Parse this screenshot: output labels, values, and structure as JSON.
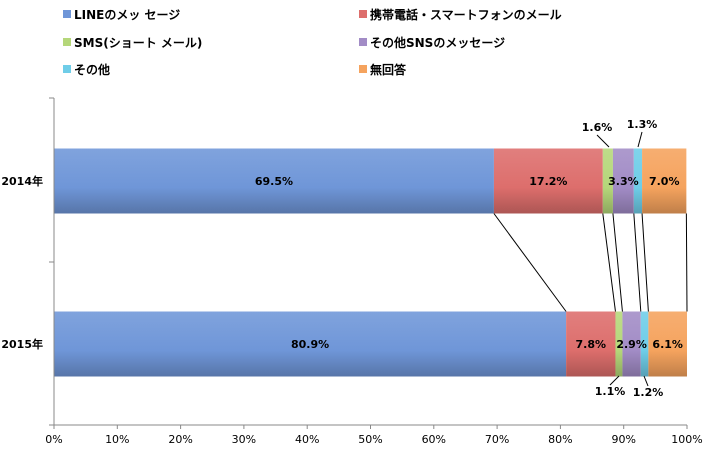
{
  "chart_data": {
    "type": "bar",
    "orientation": "horizontal",
    "stacked": true,
    "title": "",
    "xlabel": "",
    "ylabel": "",
    "xlim": [
      0,
      100
    ],
    "x_ticks": [
      "0%",
      "10%",
      "20%",
      "30%",
      "40%",
      "50%",
      "60%",
      "70%",
      "80%",
      "90%",
      "100%"
    ],
    "categories": [
      "2014年",
      "2015年"
    ],
    "legend_position": "top",
    "series": [
      {
        "name": "LINEのメッ セージ",
        "values": [
          69.5,
          80.9
        ],
        "labels": [
          "69.5%",
          "80.9%"
        ],
        "color": "#6f96d8"
      },
      {
        "name": "携帯電話・スマートフォンのメール",
        "values": [
          17.2,
          7.8
        ],
        "labels": [
          "17.2%",
          "7.8%"
        ],
        "color": "#dd6e6c"
      },
      {
        "name": "SMS(ショート メール)",
        "values": [
          1.6,
          1.1
        ],
        "labels": [
          "1.6%",
          "1.1%"
        ],
        "color": "#b5d77a"
      },
      {
        "name": "その他SNSのメッセージ",
        "values": [
          3.3,
          2.9
        ],
        "labels": [
          "3.3%",
          "2.9%"
        ],
        "color": "#a28cc6"
      },
      {
        "name": "その他",
        "values": [
          1.3,
          1.2
        ],
        "labels": [
          "1.3%",
          "1.2%"
        ],
        "color": "#6fcde8"
      },
      {
        "name": "無回答",
        "values": [
          7.0,
          6.1
        ],
        "labels": [
          "7.0%",
          "6.1%"
        ],
        "color": "#f5a35e"
      }
    ]
  }
}
